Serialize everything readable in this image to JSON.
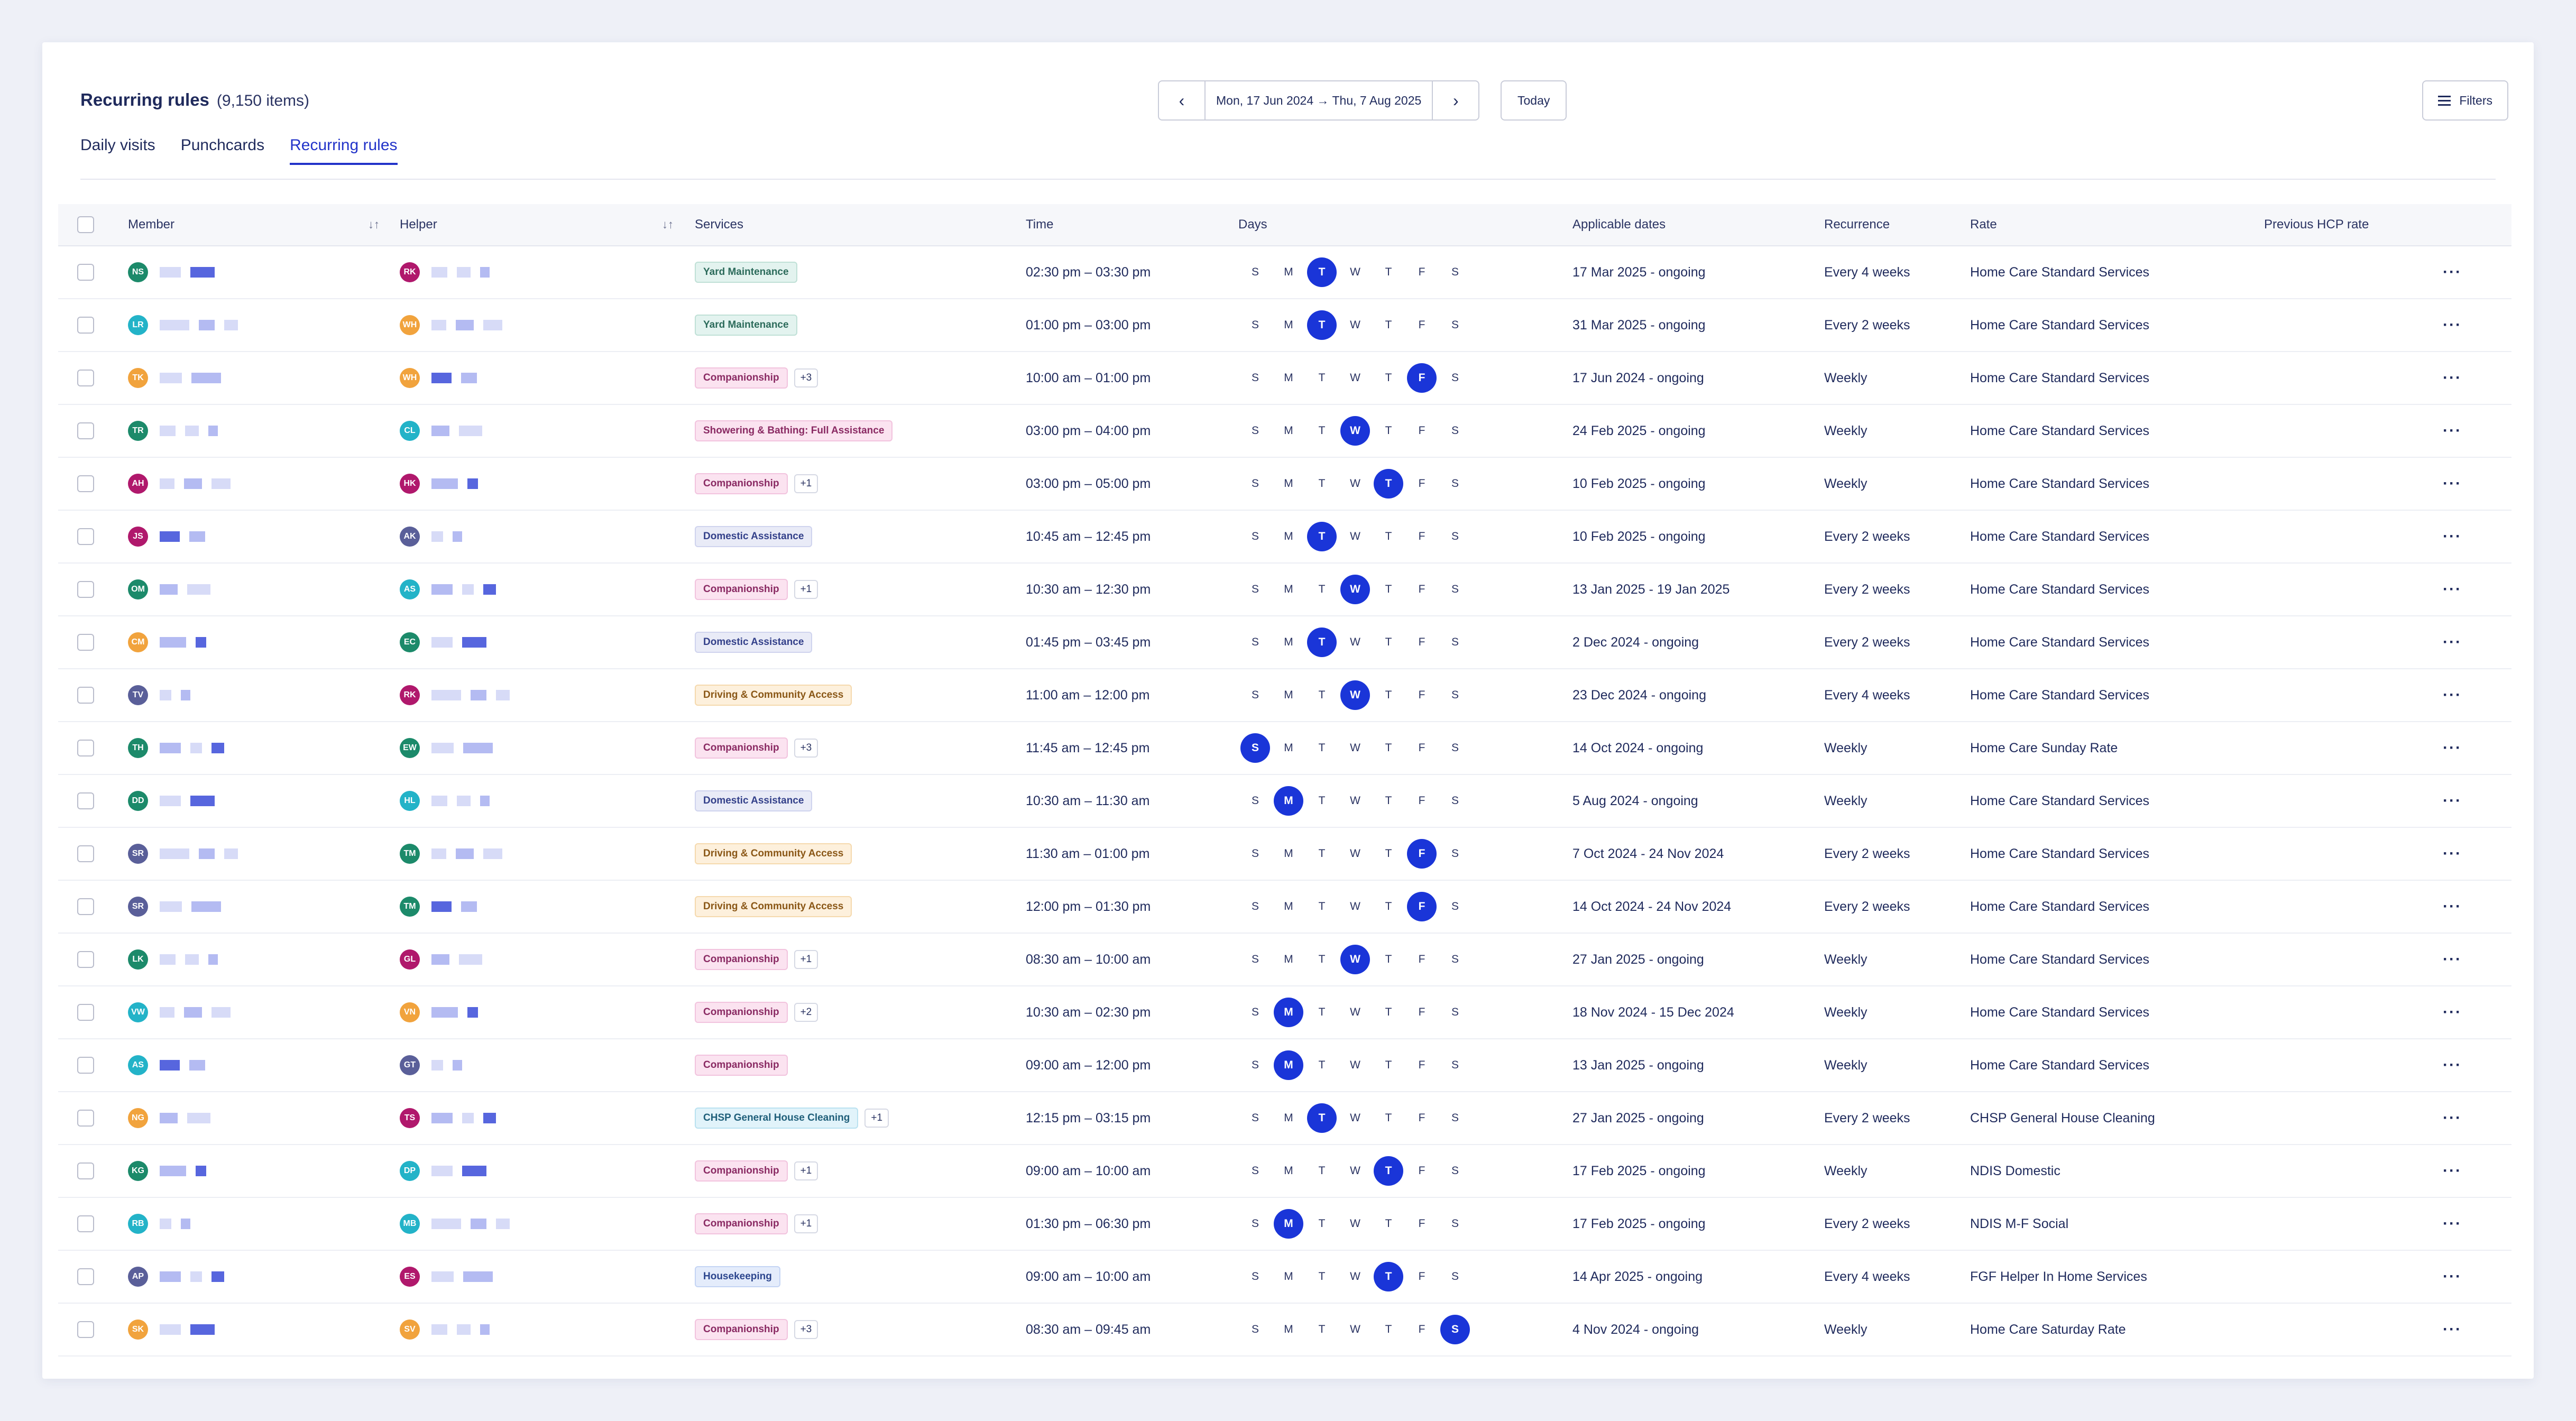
{
  "header": {
    "title": "Recurring rules",
    "count": "(9,150 items)"
  },
  "tabs": [
    {
      "label": "Daily visits",
      "active": false
    },
    {
      "label": "Punchcards",
      "active": false
    },
    {
      "label": "Recurring rules",
      "active": true
    }
  ],
  "date_nav": {
    "range": "Mon, 17 Jun 2024 → Thu, 7 Aug 2025",
    "today_label": "Today",
    "prev_icon": "chevron-left-icon",
    "next_icon": "chevron-right-icon"
  },
  "filters": {
    "label": "Filters",
    "icon": "sliders-icon"
  },
  "columns": {
    "member": "Member",
    "helper": "Helper",
    "services": "Services",
    "time": "Time",
    "days": "Days",
    "applicable": "Applicable dates",
    "recurrence": "Recurrence",
    "rate": "Rate",
    "prev_rate": "Previous HCP rate"
  },
  "day_letters": [
    "S",
    "M",
    "T",
    "W",
    "T",
    "F",
    "S"
  ],
  "service_styles": {
    "Yard Maintenance": {
      "bg": "#e3f3ef",
      "fg": "#2c6b5b",
      "border": "#bfe0d6"
    },
    "Companionship": {
      "bg": "#fbe3f0",
      "fg": "#8a2a63",
      "border": "#f2c3de"
    },
    "Showering & Bathing: Full Assistance": {
      "bg": "#fbe3f0",
      "fg": "#8a2a63",
      "border": "#f2c3de"
    },
    "Domestic Assistance": {
      "bg": "#e9ebf7",
      "fg": "#33408a",
      "border": "#cfd3ee"
    },
    "Driving & Community Access": {
      "bg": "#fdf0dc",
      "fg": "#8a5716",
      "border": "#f5d9ad"
    },
    "CHSP General House Cleaning": {
      "bg": "#e1f3fa",
      "fg": "#1f5f7a",
      "border": "#b9e1f0"
    },
    "Housekeeping": {
      "bg": "#e4ecfb",
      "fg": "#2c468e",
      "border": "#c4d4f4"
    }
  },
  "rows": [
    {
      "member": {
        "initials": "NS",
        "color": "#1c8a6a"
      },
      "helper": {
        "initials": "RK",
        "color": "#b0186c"
      },
      "service": "Yard Maintenance",
      "more": "",
      "time": "02:30 pm – 03:30 pm",
      "day": 2,
      "dates": "17 Mar 2025 - ongoing",
      "recurrence": "Every 4 weeks",
      "rate": "Home Care Standard Services"
    },
    {
      "member": {
        "initials": "LR",
        "color": "#23b3c8"
      },
      "helper": {
        "initials": "WH",
        "color": "#f1a33d"
      },
      "service": "Yard Maintenance",
      "more": "",
      "time": "01:00 pm – 03:00 pm",
      "day": 2,
      "dates": "31 Mar 2025 - ongoing",
      "recurrence": "Every 2 weeks",
      "rate": "Home Care Standard Services"
    },
    {
      "member": {
        "initials": "TK",
        "color": "#f1a33d"
      },
      "helper": {
        "initials": "WH",
        "color": "#f1a33d"
      },
      "service": "Companionship",
      "more": "+3",
      "time": "10:00 am – 01:00 pm",
      "day": 5,
      "dates": "17 Jun 2024 - ongoing",
      "recurrence": "Weekly",
      "rate": "Home Care Standard Services"
    },
    {
      "member": {
        "initials": "TR",
        "color": "#1c8a6a"
      },
      "helper": {
        "initials": "CL",
        "color": "#23b3c8"
      },
      "service": "Showering & Bathing: Full Assistance",
      "more": "",
      "time": "03:00 pm – 04:00 pm",
      "day": 3,
      "dates": "24 Feb 2025 - ongoing",
      "recurrence": "Weekly",
      "rate": "Home Care Standard Services"
    },
    {
      "member": {
        "initials": "AH",
        "color": "#b0186c"
      },
      "helper": {
        "initials": "HK",
        "color": "#b0186c"
      },
      "service": "Companionship",
      "more": "+1",
      "time": "03:00 pm – 05:00 pm",
      "day": 4,
      "dates": "10 Feb 2025 - ongoing",
      "recurrence": "Weekly",
      "rate": "Home Care Standard Services"
    },
    {
      "member": {
        "initials": "JS",
        "color": "#b0186c"
      },
      "helper": {
        "initials": "AK",
        "color": "#5a5f99"
      },
      "service": "Domestic Assistance",
      "more": "",
      "time": "10:45 am – 12:45 pm",
      "day": 2,
      "dates": "10 Feb 2025 - ongoing",
      "recurrence": "Every 2 weeks",
      "rate": "Home Care Standard Services"
    },
    {
      "member": {
        "initials": "OM",
        "color": "#1c8a6a"
      },
      "helper": {
        "initials": "AS",
        "color": "#23b3c8"
      },
      "service": "Companionship",
      "more": "+1",
      "time": "10:30 am – 12:30 pm",
      "day": 3,
      "dates": "13 Jan 2025 - 19 Jan 2025",
      "recurrence": "Every 2 weeks",
      "rate": "Home Care Standard Services"
    },
    {
      "member": {
        "initials": "CM",
        "color": "#f1a33d"
      },
      "helper": {
        "initials": "EC",
        "color": "#1c8a6a"
      },
      "service": "Domestic Assistance",
      "more": "",
      "time": "01:45 pm – 03:45 pm",
      "day": 2,
      "dates": "2 Dec 2024 - ongoing",
      "recurrence": "Every 2 weeks",
      "rate": "Home Care Standard Services"
    },
    {
      "member": {
        "initials": "TV",
        "color": "#5a5f99"
      },
      "helper": {
        "initials": "RK",
        "color": "#b0186c"
      },
      "service": "Driving & Community Access",
      "more": "",
      "time": "11:00 am – 12:00 pm",
      "day": 3,
      "dates": "23 Dec 2024 - ongoing",
      "recurrence": "Every 4 weeks",
      "rate": "Home Care Standard Services"
    },
    {
      "member": {
        "initials": "TH",
        "color": "#1c8a6a"
      },
      "helper": {
        "initials": "EW",
        "color": "#1c8a6a"
      },
      "service": "Companionship",
      "more": "+3",
      "time": "11:45 am – 12:45 pm",
      "day": 0,
      "dates": "14 Oct 2024 - ongoing",
      "recurrence": "Weekly",
      "rate": "Home Care Sunday Rate"
    },
    {
      "member": {
        "initials": "DD",
        "color": "#1c8a6a"
      },
      "helper": {
        "initials": "HL",
        "color": "#23b3c8"
      },
      "service": "Domestic Assistance",
      "more": "",
      "time": "10:30 am – 11:30 am",
      "day": 1,
      "dates": "5 Aug 2024 - ongoing",
      "recurrence": "Weekly",
      "rate": "Home Care Standard Services"
    },
    {
      "member": {
        "initials": "SR",
        "color": "#5a5f99"
      },
      "helper": {
        "initials": "TM",
        "color": "#1c8a6a"
      },
      "service": "Driving & Community Access",
      "more": "",
      "time": "11:30 am – 01:00 pm",
      "day": 5,
      "dates": "7 Oct 2024 - 24 Nov 2024",
      "recurrence": "Every 2 weeks",
      "rate": "Home Care Standard Services"
    },
    {
      "member": {
        "initials": "SR",
        "color": "#5a5f99"
      },
      "helper": {
        "initials": "TM",
        "color": "#1c8a6a"
      },
      "service": "Driving & Community Access",
      "more": "",
      "time": "12:00 pm – 01:30 pm",
      "day": 5,
      "dates": "14 Oct 2024 - 24 Nov 2024",
      "recurrence": "Every 2 weeks",
      "rate": "Home Care Standard Services"
    },
    {
      "member": {
        "initials": "LK",
        "color": "#1c8a6a"
      },
      "helper": {
        "initials": "GL",
        "color": "#b0186c"
      },
      "service": "Companionship",
      "more": "+1",
      "time": "08:30 am – 10:00 am",
      "day": 3,
      "dates": "27 Jan 2025 - ongoing",
      "recurrence": "Weekly",
      "rate": "Home Care Standard Services"
    },
    {
      "member": {
        "initials": "VW",
        "color": "#23b3c8"
      },
      "helper": {
        "initials": "VN",
        "color": "#f1a33d"
      },
      "service": "Companionship",
      "more": "+2",
      "time": "10:30 am – 02:30 pm",
      "day": 1,
      "dates": "18 Nov 2024 - 15 Dec 2024",
      "recurrence": "Weekly",
      "rate": "Home Care Standard Services"
    },
    {
      "member": {
        "initials": "AS",
        "color": "#23b3c8"
      },
      "helper": {
        "initials": "GT",
        "color": "#5a5f99"
      },
      "service": "Companionship",
      "more": "",
      "time": "09:00 am – 12:00 pm",
      "day": 1,
      "dates": "13 Jan 2025 - ongoing",
      "recurrence": "Weekly",
      "rate": "Home Care Standard Services"
    },
    {
      "member": {
        "initials": "NG",
        "color": "#f1a33d"
      },
      "helper": {
        "initials": "TS",
        "color": "#b0186c"
      },
      "service": "CHSP General House Cleaning",
      "more": "+1",
      "time": "12:15 pm – 03:15 pm",
      "day": 2,
      "dates": "27 Jan 2025 - ongoing",
      "recurrence": "Every 2 weeks",
      "rate": "CHSP General House Cleaning"
    },
    {
      "member": {
        "initials": "KG",
        "color": "#1c8a6a"
      },
      "helper": {
        "initials": "DP",
        "color": "#23b3c8"
      },
      "service": "Companionship",
      "more": "+1",
      "time": "09:00 am – 10:00 am",
      "day": 4,
      "dates": "17 Feb 2025 - ongoing",
      "recurrence": "Weekly",
      "rate": "NDIS Domestic"
    },
    {
      "member": {
        "initials": "RB",
        "color": "#23b3c8"
      },
      "helper": {
        "initials": "MB",
        "color": "#23b3c8"
      },
      "service": "Companionship",
      "more": "+1",
      "time": "01:30 pm – 06:30 pm",
      "day": 1,
      "dates": "17 Feb 2025 - ongoing",
      "recurrence": "Every 2 weeks",
      "rate": "NDIS M-F Social"
    },
    {
      "member": {
        "initials": "AP",
        "color": "#5a5f99"
      },
      "helper": {
        "initials": "ES",
        "color": "#b0186c"
      },
      "service": "Housekeeping",
      "more": "",
      "time": "09:00 am – 10:00 am",
      "day": 4,
      "dates": "14 Apr 2025 - ongoing",
      "recurrence": "Every 4 weeks",
      "rate": "FGF Helper In Home Services"
    },
    {
      "member": {
        "initials": "SK",
        "color": "#f1a33d"
      },
      "helper": {
        "initials": "SV",
        "color": "#f1a33d"
      },
      "service": "Companionship",
      "more": "+3",
      "time": "08:30 am – 09:45 am",
      "day": 6,
      "dates": "4 Nov 2024 - ongoing",
      "recurrence": "Weekly",
      "rate": "Home Care Saturday Rate"
    }
  ]
}
